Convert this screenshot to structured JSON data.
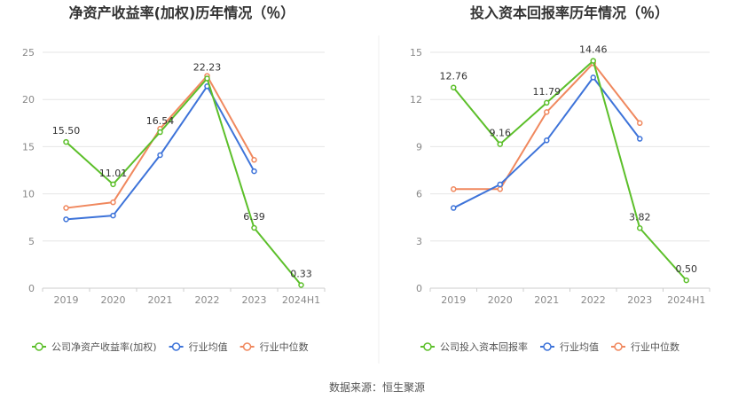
{
  "source_label": "数据来源：恒生聚源",
  "colors": {
    "company": "#5cbf2a",
    "industry_avg": "#3d73d9",
    "industry_median": "#f0885e",
    "grid": "#e6e6e6",
    "axis_text": "#888888",
    "title": "#333333"
  },
  "chart_data": [
    {
      "type": "line",
      "title": "净资产收益率(加权)历年情况（％）",
      "categories": [
        "2019",
        "2020",
        "2021",
        "2022",
        "2023",
        "2024H1"
      ],
      "ylim": [
        0,
        25
      ],
      "yticks": [
        0,
        5,
        10,
        15,
        20,
        25
      ],
      "series": [
        {
          "name": "公司净资产收益率(加权)",
          "key": "company",
          "values": [
            15.5,
            11.01,
            16.54,
            22.23,
            6.39,
            0.33
          ],
          "labels": [
            "15.50",
            "11.01",
            "16.54",
            "22.23",
            "6.39",
            "0.33"
          ]
        },
        {
          "name": "行业均值",
          "key": "industry_avg",
          "values": [
            7.3,
            7.7,
            14.1,
            21.4,
            12.4,
            null
          ]
        },
        {
          "name": "行业中位数",
          "key": "industry_median",
          "values": [
            8.5,
            9.1,
            16.9,
            22.5,
            13.6,
            null
          ]
        }
      ]
    },
    {
      "type": "line",
      "title": "投入资本回报率历年情况（％）",
      "categories": [
        "2019",
        "2020",
        "2021",
        "2022",
        "2023",
        "2024H1"
      ],
      "ylim": [
        0,
        15
      ],
      "yticks": [
        0,
        3,
        6,
        9,
        12,
        15
      ],
      "series": [
        {
          "name": "公司投入资本回报率",
          "key": "company",
          "values": [
            12.76,
            9.16,
            11.79,
            14.46,
            3.82,
            0.5
          ],
          "labels": [
            "12.76",
            "9.16",
            "11.79",
            "14.46",
            "3.82",
            "0.50"
          ]
        },
        {
          "name": "行业均值",
          "key": "industry_avg",
          "values": [
            5.1,
            6.6,
            9.4,
            13.4,
            9.5,
            null
          ]
        },
        {
          "name": "行业中位数",
          "key": "industry_median",
          "values": [
            6.3,
            6.3,
            11.2,
            14.3,
            10.5,
            null
          ]
        }
      ]
    }
  ]
}
